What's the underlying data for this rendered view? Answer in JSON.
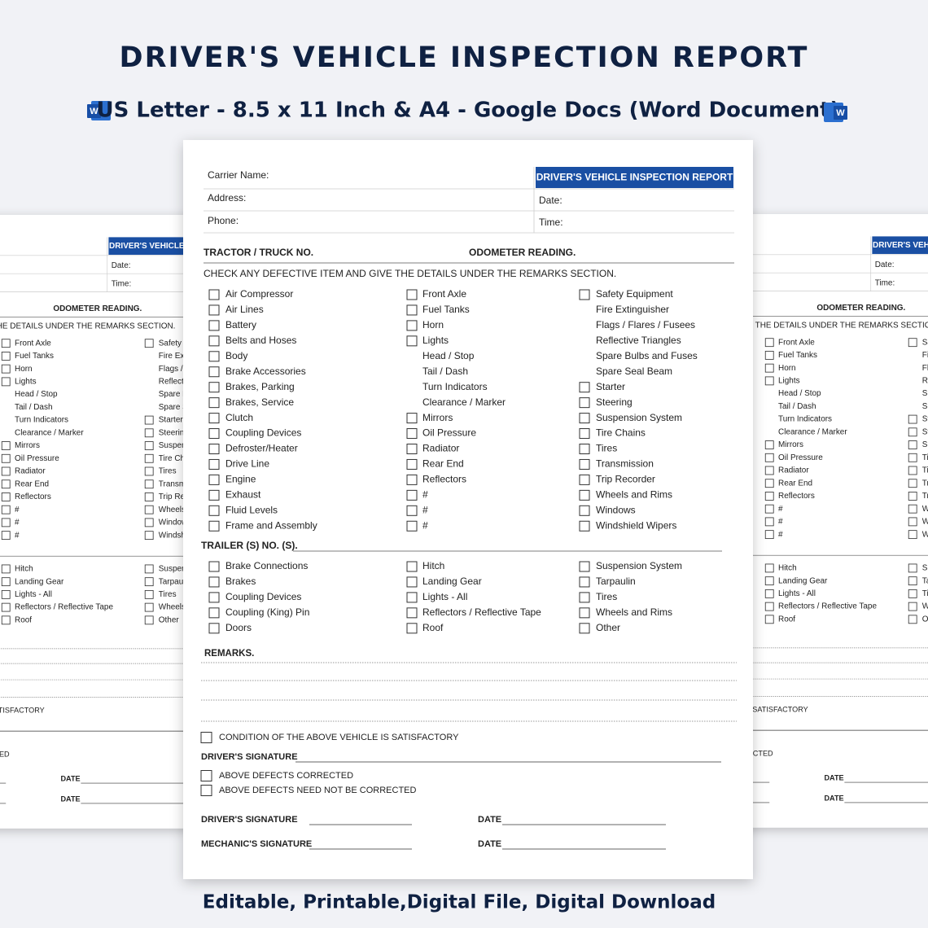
{
  "banner": {
    "title": "DRIVER'S VEHICLE INSPECTION REPORT",
    "subtitle": "US Letter - 8.5 x 11 Inch & A4 - Google Docs (Word Document)",
    "footer": "Editable, Printable,Digital File, Digital Download"
  },
  "form": {
    "header": {
      "carrier": "Carrier Name:",
      "address": "Address:",
      "phone": "Phone:",
      "title": "DRIVER'S VEHICLE INSPECTION REPORT",
      "date": "Date:",
      "time": "Time:"
    },
    "tractor_label": "TRACTOR / TRUCK NO.",
    "odometer_label": "ODOMETER READING.",
    "instruction": "CHECK ANY DEFECTIVE ITEM AND GIVE THE DETAILS UNDER THE REMARKS SECTION.",
    "tractor_items": [
      [
        {
          "label": "Air Compressor",
          "box": true
        },
        {
          "label": "Air Lines",
          "box": true
        },
        {
          "label": "Battery",
          "box": true
        },
        {
          "label": "Belts and Hoses",
          "box": true
        },
        {
          "label": "Body",
          "box": true
        },
        {
          "label": "Brake Accessories",
          "box": true
        },
        {
          "label": "Brakes, Parking",
          "box": true
        },
        {
          "label": "Brakes, Service",
          "box": true
        },
        {
          "label": "Clutch",
          "box": true
        },
        {
          "label": "Coupling Devices",
          "box": true
        },
        {
          "label": "Defroster/Heater",
          "box": true
        },
        {
          "label": "Drive Line",
          "box": true
        },
        {
          "label": "Engine",
          "box": true
        },
        {
          "label": "Exhaust",
          "box": true
        },
        {
          "label": "Fluid Levels",
          "box": true
        },
        {
          "label": "Frame and Assembly",
          "box": true
        }
      ],
      [
        {
          "label": "Front Axle",
          "box": true
        },
        {
          "label": "Fuel Tanks",
          "box": true
        },
        {
          "label": "Horn",
          "box": true
        },
        {
          "label": "Lights",
          "box": true
        },
        {
          "label": "Head / Stop",
          "box": false
        },
        {
          "label": "Tail / Dash",
          "box": false
        },
        {
          "label": "Turn Indicators",
          "box": false
        },
        {
          "label": "Clearance / Marker",
          "box": false
        },
        {
          "label": "Mirrors",
          "box": true
        },
        {
          "label": "Oil Pressure",
          "box": true
        },
        {
          "label": "Radiator",
          "box": true
        },
        {
          "label": "Rear End",
          "box": true
        },
        {
          "label": "Reflectors",
          "box": true
        },
        {
          "label": "#",
          "box": true
        },
        {
          "label": "#",
          "box": true
        },
        {
          "label": "#",
          "box": true
        }
      ],
      [
        {
          "label": "Safety Equipment",
          "box": true
        },
        {
          "label": "Fire Extinguisher",
          "box": false
        },
        {
          "label": "Flags / Flares / Fusees",
          "box": false
        },
        {
          "label": "Reflective Triangles",
          "box": false
        },
        {
          "label": "Spare Bulbs and Fuses",
          "box": false
        },
        {
          "label": "Spare Seal Beam",
          "box": false
        },
        {
          "label": "Starter",
          "box": true
        },
        {
          "label": "Steering",
          "box": true
        },
        {
          "label": "Suspension System",
          "box": true
        },
        {
          "label": "Tire Chains",
          "box": true
        },
        {
          "label": "Tires",
          "box": true
        },
        {
          "label": "Transmission",
          "box": true
        },
        {
          "label": "Trip Recorder",
          "box": true
        },
        {
          "label": "Wheels and Rims",
          "box": true
        },
        {
          "label": "Windows",
          "box": true
        },
        {
          "label": "Windshield Wipers",
          "box": true
        }
      ]
    ],
    "trailer_label": "TRAILER (S) NO. (S).",
    "trailer_items": [
      [
        {
          "label": "Brake Connections",
          "box": true
        },
        {
          "label": "Brakes",
          "box": true
        },
        {
          "label": "Coupling Devices",
          "box": true
        },
        {
          "label": "Coupling (King) Pin",
          "box": true
        },
        {
          "label": "Doors",
          "box": true
        }
      ],
      [
        {
          "label": "Hitch",
          "box": true
        },
        {
          "label": "Landing Gear",
          "box": true
        },
        {
          "label": "Lights - All",
          "box": true
        },
        {
          "label": "Reflectors / Reflective Tape",
          "box": true
        },
        {
          "label": "Roof",
          "box": true
        }
      ],
      [
        {
          "label": "Suspension System",
          "box": true
        },
        {
          "label": "Tarpaulin",
          "box": true
        },
        {
          "label": "Tires",
          "box": true
        },
        {
          "label": "Wheels and Rims",
          "box": true
        },
        {
          "label": "Other",
          "box": true
        }
      ]
    ],
    "remarks_label": "REMARKS.",
    "satisfactory": "CONDITION OF THE ABOVE VEHICLE IS SATISFACTORY",
    "driver_signature_top": "DRIVER'S SIGNATURE",
    "corrected": "ABOVE DEFECTS CORRECTED",
    "not_needed": "ABOVE DEFECTS  NEED NOT BE CORRECTED",
    "driver_signature": "DRIVER'S SIGNATURE",
    "driver_date": "DATE",
    "mechanic_signature": "MECHANIC'S SIGNATURE",
    "mechanic_date": "DATE"
  }
}
